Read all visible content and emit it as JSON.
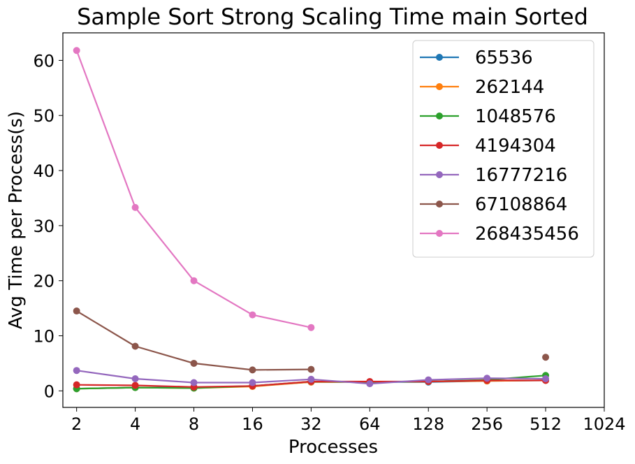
{
  "chart_data": {
    "type": "line",
    "title": "Sample Sort Strong Scaling Time main Sorted",
    "xlabel": "Processes",
    "ylabel": "Avg Time per Process(s)",
    "x_scale": "log2",
    "x_ticks": [
      "2",
      "4",
      "8",
      "16",
      "32",
      "64",
      "128",
      "256",
      "512",
      "1024"
    ],
    "y_ticks": [
      "0",
      "10",
      "20",
      "30",
      "40",
      "50",
      "60"
    ],
    "xlim": [
      1.7,
      1024
    ],
    "ylim": [
      -3,
      65
    ],
    "grid": false,
    "legend_position": "top-right",
    "series": [
      {
        "name": "65536",
        "color": "#1f77b4",
        "points": [
          [
            2,
            0.4
          ],
          [
            4,
            0.6
          ],
          [
            8,
            0.6
          ],
          [
            16,
            0.9
          ],
          [
            32,
            1.6
          ],
          [
            64,
            1.6
          ],
          [
            128,
            1.6
          ],
          [
            256,
            1.8
          ],
          [
            512,
            1.9
          ]
        ]
      },
      {
        "name": "262144",
        "color": "#ff7f0e",
        "points": [
          [
            2,
            0.4
          ],
          [
            4,
            0.6
          ],
          [
            8,
            0.5
          ],
          [
            16,
            0.8
          ],
          [
            32,
            1.6
          ],
          [
            64,
            1.6
          ],
          [
            128,
            1.7
          ],
          [
            256,
            1.8
          ],
          [
            512,
            1.9
          ]
        ]
      },
      {
        "name": "1048576",
        "color": "#2ca02c",
        "points": [
          [
            2,
            0.4
          ],
          [
            4,
            0.6
          ],
          [
            8,
            0.5
          ],
          [
            16,
            0.9
          ],
          [
            32,
            1.7
          ],
          [
            64,
            1.6
          ],
          [
            128,
            1.7
          ],
          [
            256,
            2.0
          ],
          [
            512,
            2.8
          ]
        ]
      },
      {
        "name": "4194304",
        "color": "#d62728",
        "points": [
          [
            2,
            1.1
          ],
          [
            4,
            1.0
          ],
          [
            8,
            0.7
          ],
          [
            16,
            0.9
          ],
          [
            32,
            1.7
          ],
          [
            64,
            1.7
          ],
          [
            128,
            1.7
          ],
          [
            256,
            1.9
          ],
          [
            512,
            1.9
          ]
        ]
      },
      {
        "name": "16777216",
        "color": "#9467bd",
        "points": [
          [
            2,
            3.7
          ],
          [
            4,
            2.2
          ],
          [
            8,
            1.5
          ],
          [
            16,
            1.5
          ],
          [
            32,
            2.1
          ],
          [
            64,
            1.3
          ],
          [
            128,
            2.0
          ],
          [
            256,
            2.3
          ],
          [
            512,
            2.2
          ]
        ]
      },
      {
        "name": "67108864",
        "color": "#8c564b",
        "points": [
          [
            2,
            14.5
          ],
          [
            4,
            8.1
          ],
          [
            8,
            5.0
          ],
          [
            16,
            3.8
          ],
          [
            32,
            3.9
          ],
          [
            64,
            null
          ],
          [
            128,
            null
          ],
          [
            256,
            null
          ],
          [
            512,
            6.1
          ]
        ]
      },
      {
        "name": "268435456",
        "color": "#e377c2",
        "points": [
          [
            2,
            61.8
          ],
          [
            4,
            33.3
          ],
          [
            8,
            20.0
          ],
          [
            16,
            13.8
          ],
          [
            32,
            11.5
          ]
        ]
      }
    ]
  }
}
